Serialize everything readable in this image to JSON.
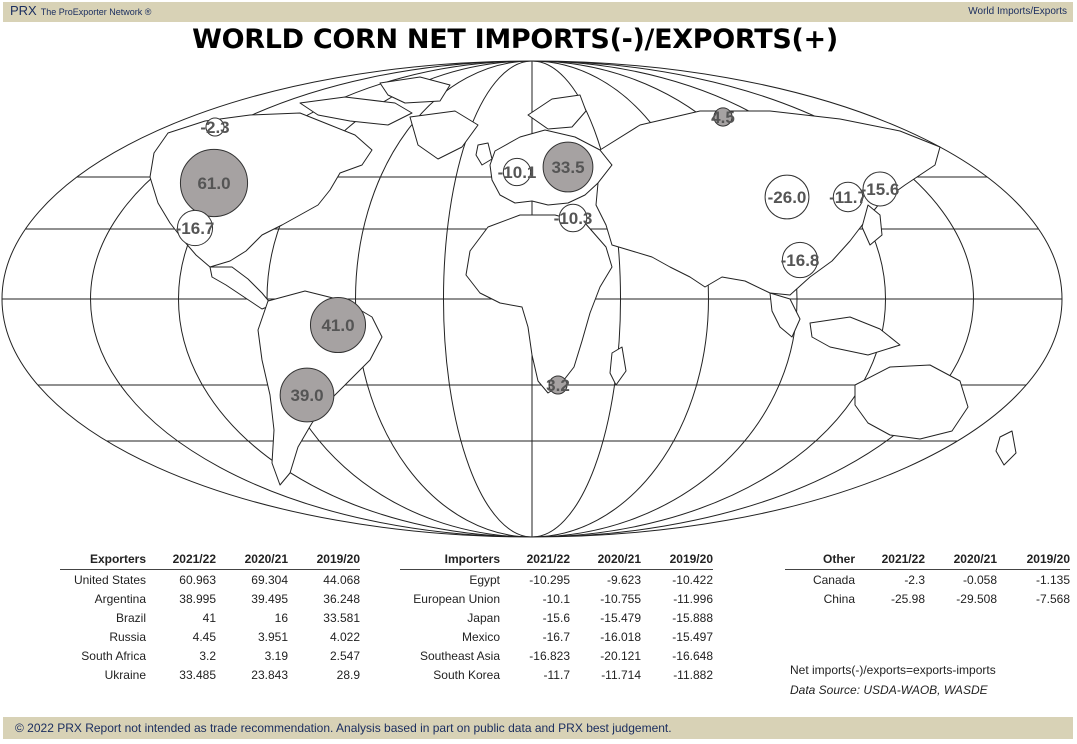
{
  "header": {
    "brand": "PRX",
    "network": "The ProExporter Network ®",
    "section": "World Imports/Exports"
  },
  "title": "WORLD CORN NET IMPORTS(-)/EXPORTS(+)",
  "chart_data": {
    "type": "bubble-map",
    "title": "WORLD CORN NET IMPORTS(-)/EXPORTS(+)",
    "bubbles": [
      {
        "label": "-2.3",
        "value": -2.3
      },
      {
        "label": "61.0",
        "value": 60.963
      },
      {
        "label": "-16.7",
        "value": -16.7
      },
      {
        "label": "41.0",
        "value": 41
      },
      {
        "label": "39.0",
        "value": 38.995
      },
      {
        "label": "-10.1",
        "value": -10.1
      },
      {
        "label": "33.5",
        "value": 33.485
      },
      {
        "label": "-10.3",
        "value": -10.295
      },
      {
        "label": "4.5",
        "value": 4.45
      },
      {
        "label": "3.2",
        "value": 3.2
      },
      {
        "label": "-26.0",
        "value": -25.98
      },
      {
        "label": "-11.7",
        "value": -11.7
      },
      {
        "label": "-15.6",
        "value": -15.6
      },
      {
        "label": "-16.8",
        "value": -16.823
      }
    ],
    "colors": {
      "exporter": "#a6a2a2",
      "importer": "#ffffff",
      "outline": "#333333",
      "label": "#555555"
    }
  },
  "tables": {
    "exporters": {
      "headers": [
        "Exporters",
        "2021/22",
        "2020/21",
        "2019/20"
      ],
      "rows": [
        [
          "United States",
          "60.963",
          "69.304",
          "44.068"
        ],
        [
          "Argentina",
          "38.995",
          "39.495",
          "36.248"
        ],
        [
          "Brazil",
          "41",
          "16",
          "33.581"
        ],
        [
          "Russia",
          "4.45",
          "3.951",
          "4.022"
        ],
        [
          "South Africa",
          "3.2",
          "3.19",
          "2.547"
        ],
        [
          "Ukraine",
          "33.485",
          "23.843",
          "28.9"
        ]
      ]
    },
    "importers": {
      "headers": [
        "Importers",
        "2021/22",
        "2020/21",
        "2019/20"
      ],
      "rows": [
        [
          "Egypt",
          "-10.295",
          "-9.623",
          "-10.422"
        ],
        [
          "European Union",
          "-10.1",
          "-10.755",
          "-11.996"
        ],
        [
          "Japan",
          "-15.6",
          "-15.479",
          "-15.888"
        ],
        [
          "Mexico",
          "-16.7",
          "-16.018",
          "-15.497"
        ],
        [
          "Southeast Asia",
          "-16.823",
          "-20.121",
          "-16.648"
        ],
        [
          "South Korea",
          "-11.7",
          "-11.714",
          "-11.882"
        ]
      ]
    },
    "other": {
      "headers": [
        "Other",
        "2021/22",
        "2020/21",
        "2019/20"
      ],
      "rows": [
        [
          "Canada",
          "-2.3",
          "-0.058",
          "-1.135"
        ],
        [
          "China",
          "-25.98",
          "-29.508",
          "-7.568"
        ]
      ]
    }
  },
  "notes": {
    "formula": "Net imports(-)/exports=exports-imports",
    "source": "Data Source: USDA-WAOB, WASDE"
  },
  "footer": "© 2022 PRX  Report not intended as trade recommendation. Analysis based in part on public data and PRX best judgement."
}
